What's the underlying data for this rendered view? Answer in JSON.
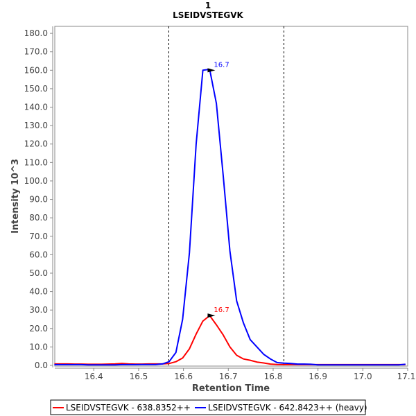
{
  "chart_data": {
    "type": "line",
    "title": "1",
    "subtitle": "LSEIDVSTEGVK",
    "xlabel": "Retention Time",
    "ylabel": "Intensity 10^3",
    "xlim": [
      16.313,
      17.1
    ],
    "ylim": [
      0,
      183.8
    ],
    "x_ticks": [
      "16.4",
      "16.5",
      "16.6",
      "16.7",
      "16.8",
      "16.9",
      "17.0",
      "17.1"
    ],
    "x_tick_values": [
      16.4,
      16.5,
      16.6,
      16.7,
      16.8,
      16.9,
      17.0,
      17.1
    ],
    "y_ticks": [
      "0.0",
      "10.0",
      "20.0",
      "30.0",
      "40.0",
      "50.0",
      "60.0",
      "70.0",
      "80.0",
      "90.0",
      "100.0",
      "110.0",
      "120.0",
      "130.0",
      "140.0",
      "150.0",
      "160.0",
      "170.0",
      "180.0"
    ],
    "y_tick_values": [
      0,
      10,
      20,
      30,
      40,
      50,
      60,
      70,
      80,
      90,
      100,
      110,
      120,
      130,
      140,
      150,
      160,
      170,
      180
    ],
    "grid": false,
    "integration_bounds": [
      16.567,
      16.823
    ],
    "x_start": 16.312,
    "x_step": 0.01506,
    "series": [
      {
        "name": "LSEIDVSTEGVK - 638.8352++",
        "color": "#ff0000",
        "values": [
          0.8,
          0.8,
          0.8,
          0.7,
          0.7,
          0.6,
          0.6,
          0.6,
          0.7,
          0.8,
          1.0,
          0.8,
          0.7,
          0.7,
          0.8,
          0.8,
          0.8,
          1,
          2,
          4,
          9,
          17,
          24,
          27,
          22,
          16.5,
          10,
          5.5,
          3.5,
          2.8,
          1.8,
          1.3,
          0.7,
          0.5,
          0.4,
          0.4,
          0.4,
          0.4,
          0.4,
          0.4,
          0.4,
          0.4,
          0.4,
          0.4,
          0.4,
          0.4,
          0.4,
          0.4,
          0.4,
          0.4,
          0.4,
          0.4,
          0.4
        ],
        "peak": {
          "x": 16.66,
          "y": 27,
          "label": "16.7"
        }
      },
      {
        "name": "LSEIDVSTEGVK - 642.8423++ (heavy)",
        "color": "#0000ff",
        "values": [
          0.4,
          0.4,
          0.4,
          0.4,
          0.4,
          0.3,
          0.3,
          0.3,
          0.3,
          0.3,
          0.4,
          0.4,
          0.4,
          0.5,
          0.5,
          0.5,
          0.8,
          2,
          7,
          25,
          61,
          120,
          160,
          160.5,
          142,
          103,
          62,
          35,
          23,
          14,
          10,
          6,
          3.5,
          1.5,
          1.2,
          1.0,
          0.7,
          0.7,
          0.6,
          0.3,
          0.3,
          0.3,
          0.3,
          0.3,
          0.3,
          0.3,
          0.3,
          0.3,
          0.3,
          0.3,
          0.3,
          0.3,
          0.6
        ],
        "peak": {
          "x": 16.66,
          "y": 160,
          "label": "16.7"
        }
      }
    ],
    "legend_position": "bottom"
  }
}
